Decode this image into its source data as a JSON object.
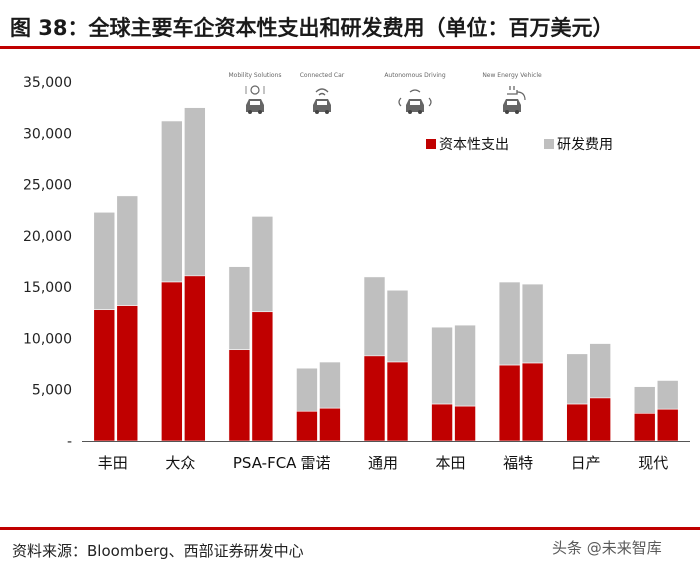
{
  "title": "图 38：全球主要车企资本性支出和研发费用（单位：百万美元）",
  "source": "资料来源：Bloomberg、西部证券研发中心",
  "watermark": "头条 @未来智库",
  "icons": [
    {
      "label": "Mobility Solutions",
      "icon": "mobility-car-icon"
    },
    {
      "label": "Connected Car",
      "icon": "connected-car-icon"
    },
    {
      "label": "Autonomous Driving",
      "icon": "autonomous-car-icon"
    },
    {
      "label": "New Energy Vehicle",
      "icon": "ev-plug-icon"
    }
  ],
  "chart_data": {
    "type": "bar",
    "stacked": true,
    "bars_per_category": 2,
    "categories": [
      "丰田",
      "大众",
      "PSA-FCA",
      "雷诺",
      "通用",
      "本田",
      "福特",
      "日产",
      "现代"
    ],
    "series": [
      {
        "name": "资本性支出",
        "color": "#c00000",
        "values": [
          [
            12800,
            13200
          ],
          [
            15500,
            16100
          ],
          [
            8900,
            12600
          ],
          [
            2900,
            3200
          ],
          [
            8300,
            7700
          ],
          [
            3600,
            3400
          ],
          [
            7400,
            7600
          ],
          [
            3600,
            4200
          ],
          [
            2700,
            3100
          ]
        ]
      },
      {
        "name": "研发费用",
        "color": "#bfbfbf",
        "values": [
          [
            9500,
            10700
          ],
          [
            15700,
            16400
          ],
          [
            8100,
            9300
          ],
          [
            4200,
            4500
          ],
          [
            7700,
            7000
          ],
          [
            7500,
            7900
          ],
          [
            8100,
            7700
          ],
          [
            4900,
            5300
          ],
          [
            2600,
            2800
          ]
        ]
      }
    ],
    "ylim": [
      0,
      35000
    ],
    "yticks": [
      0,
      5000,
      10000,
      15000,
      20000,
      25000,
      30000,
      35000
    ],
    "ytick_labels": [
      "-",
      "5,000",
      "10,000",
      "15,000",
      "20,000",
      "25,000",
      "30,000",
      "35,000"
    ],
    "legend_position": "upper-right",
    "grid": false
  }
}
